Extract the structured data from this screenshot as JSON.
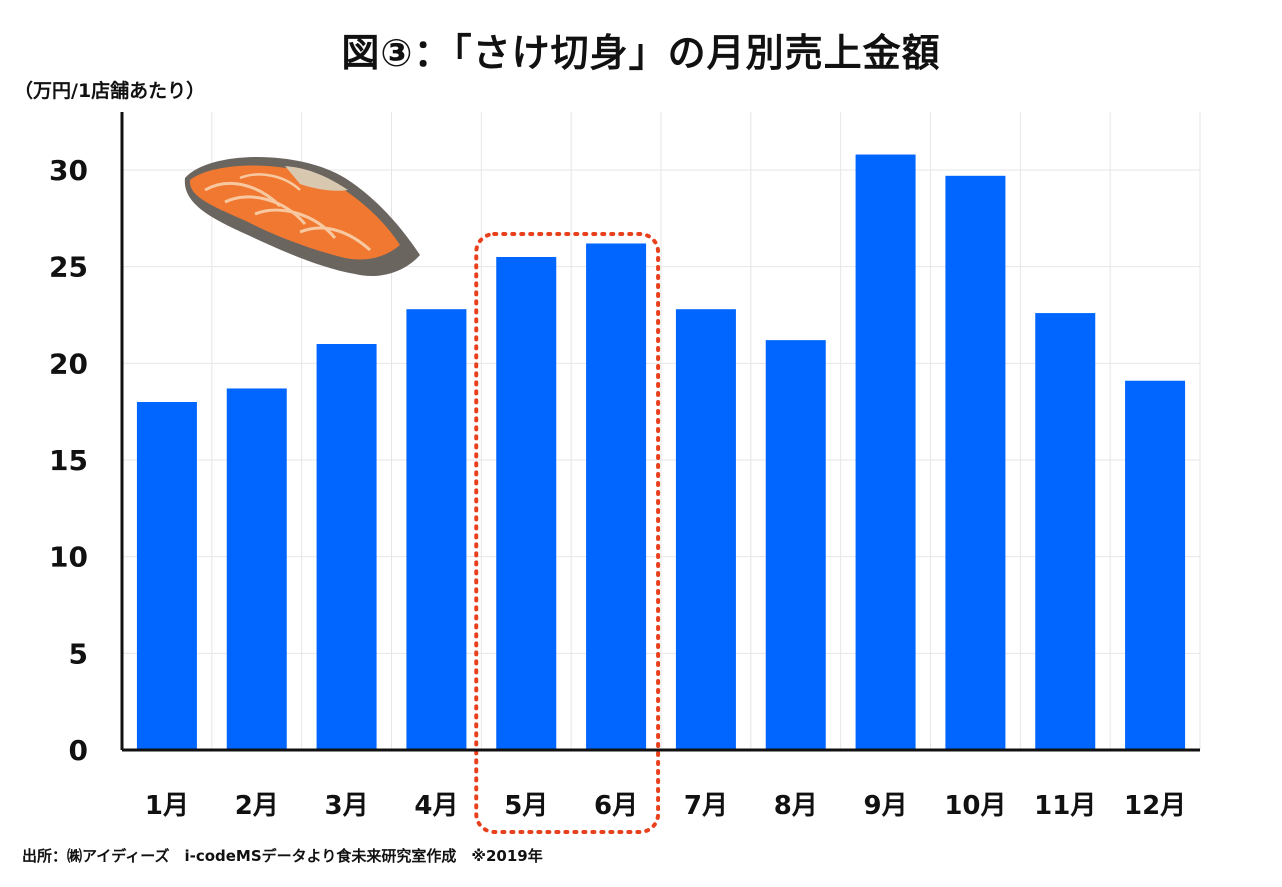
{
  "title": "図③：「さけ切身」の月別売上金額",
  "unit_label": "（万円/1店舗あたり）",
  "source_note": "出所：㈱アイディーズ　i-codeMSデータより食未来研究室作成　※2019年",
  "colors": {
    "bar": "#0066ff",
    "highlight": "#e8401c",
    "grid": "#e6e6e6",
    "axis": "#111111"
  },
  "chart_data": {
    "type": "bar",
    "title": "図③：「さけ切身」の月別売上金額",
    "xlabel": "",
    "ylabel": "（万円/1店舗あたり）",
    "categories": [
      "1月",
      "2月",
      "3月",
      "4月",
      "5月",
      "6月",
      "7月",
      "8月",
      "9月",
      "10月",
      "11月",
      "12月"
    ],
    "values": [
      18.0,
      18.7,
      21.0,
      22.8,
      25.5,
      26.2,
      22.8,
      21.2,
      30.8,
      29.7,
      22.6,
      19.1
    ],
    "ylim": [
      0,
      33
    ],
    "yticks": [
      0,
      5,
      10,
      15,
      20,
      25,
      30
    ],
    "grid": true,
    "highlighted_categories": [
      "5月",
      "6月"
    ],
    "illustration": "salmon-fillet"
  }
}
